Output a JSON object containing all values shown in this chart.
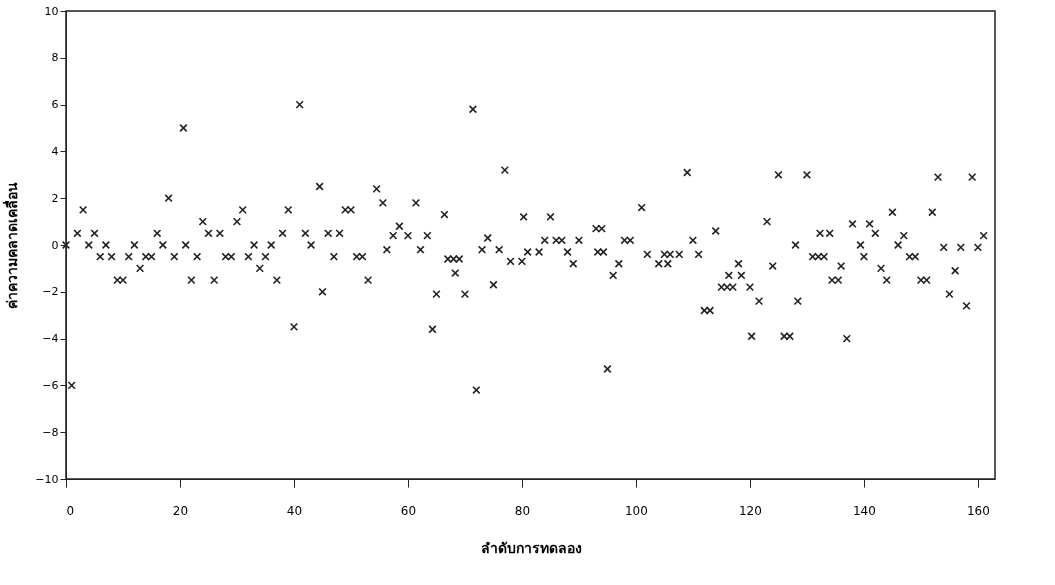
{
  "chart_data": {
    "type": "scatter",
    "xlabel": "ลำดับการทดลอง",
    "ylabel": "ค่าความคลาดเคลื่อน",
    "x": [
      0,
      1,
      2,
      3,
      4,
      5,
      6,
      7,
      8,
      9,
      10,
      11,
      12,
      13,
      14,
      15,
      16,
      17,
      18,
      19,
      20.6,
      21,
      22,
      23,
      24,
      25,
      26,
      27,
      28,
      29,
      30,
      31,
      32,
      33,
      34,
      35,
      36,
      37,
      38,
      39,
      40,
      41,
      42,
      43,
      44.5,
      45,
      46,
      47,
      48,
      49,
      50,
      51,
      52,
      53,
      54.5,
      55.6,
      56.3,
      57.4,
      58.5,
      60,
      61.4,
      62.2,
      63.4,
      64.3,
      65,
      66.4,
      67,
      68,
      68.3,
      69,
      70,
      71.4,
      72,
      73,
      74,
      75,
      76,
      77,
      78,
      80,
      80.3,
      81,
      83,
      84,
      85,
      86,
      87,
      88,
      89,
      90,
      93,
      94,
      93.3,
      94.3,
      95,
      96,
      97,
      98,
      99,
      101,
      102,
      104,
      105,
      105.6,
      106,
      107.6,
      109,
      110,
      111,
      112,
      113,
      114,
      115,
      116,
      116.3,
      117,
      118,
      118.5,
      120,
      120.3,
      121.6,
      123,
      124,
      125,
      126,
      127,
      128,
      128.4,
      130,
      131,
      132,
      132.3,
      133,
      134,
      134.4,
      135.5,
      136,
      137,
      138,
      139.4,
      140,
      141,
      142,
      143,
      144,
      145,
      146,
      147,
      148,
      149,
      150,
      151,
      152,
      153,
      154,
      155,
      156,
      157,
      158,
      159,
      160,
      161
    ],
    "series": [
      {
        "color": "#222222",
        "values": [
          0,
          -6,
          0.5,
          1.5,
          0,
          0.5,
          -0.5,
          0,
          -0.5,
          -1.5,
          -1.5,
          -0.5,
          0,
          -1,
          -0.5,
          -0.5,
          0.5,
          0,
          2,
          -0.5,
          5,
          0,
          -1.5,
          -0.5,
          1,
          0.5,
          -1.5,
          0.5,
          -0.5,
          -0.5,
          1,
          1.5,
          -0.5,
          0,
          -1,
          -0.5,
          0,
          -1.5,
          0.5,
          1.5,
          -3.5,
          6,
          0.5,
          0,
          2.5,
          -2,
          0.5,
          -0.5,
          0.5,
          1.5,
          1.5,
          -0.5,
          -0.5,
          -1.5,
          2.4,
          1.8,
          -0.2,
          0.4,
          0.8,
          0.4,
          1.8,
          -0.2,
          0.4,
          -3.6,
          -2.1,
          1.3,
          -0.6,
          -0.6,
          -1.2,
          -0.6,
          -2.1,
          5.8,
          -6.2,
          -0.2,
          0.3,
          -1.7,
          -0.2,
          3.2,
          -0.7,
          -0.7,
          1.2,
          -0.3,
          -0.3,
          0.2,
          1.2,
          0.2,
          0.2,
          -0.3,
          -0.8,
          0.2,
          0.7,
          0.7,
          -0.3,
          -0.3,
          -5.3,
          -1.3,
          -0.8,
          0.2,
          0.2,
          1.6,
          -0.4,
          -0.8,
          -0.4,
          -0.8,
          -0.4,
          -0.4,
          3.1,
          0.2,
          -0.4,
          -2.8,
          -2.8,
          0.6,
          -1.8,
          -1.8,
          -1.3,
          -1.8,
          -0.8,
          -1.3,
          -1.8,
          -3.9,
          -2.4,
          1,
          -0.9,
          3,
          -3.9,
          -3.9,
          0,
          -2.4,
          3,
          -0.5,
          -0.5,
          0.5,
          -0.5,
          0.5,
          -1.5,
          -1.5,
          -0.9,
          -4,
          0.9,
          0,
          -0.5,
          0.9,
          0.5,
          -1,
          -1.5,
          1.4,
          0,
          0.4,
          -0.5,
          -0.5,
          -1.5,
          -1.5,
          1.4,
          2.9,
          -0.1,
          -2.1,
          -1.1,
          -0.1,
          -2.6,
          2.9,
          -0.1,
          0.4
        ]
      }
    ],
    "xlim": [
      0,
      163
    ],
    "ylim": [
      -10,
      10
    ],
    "xticks": [
      0,
      20,
      40,
      60,
      80,
      100,
      120,
      140,
      160
    ],
    "yticks": [
      -10,
      -8,
      -6,
      -4,
      -2,
      0,
      2,
      4,
      6,
      8,
      10
    ],
    "marker": "cross",
    "grid": false
  }
}
